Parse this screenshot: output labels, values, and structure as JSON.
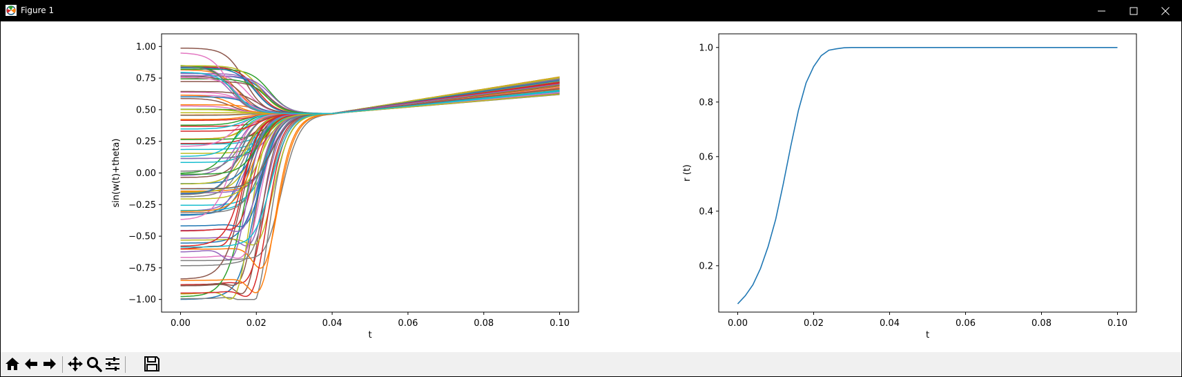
{
  "window": {
    "title": "Figure 1"
  },
  "toolbar": {
    "icons": [
      "home-icon",
      "back-arrow-icon",
      "forward-arrow-icon",
      "pan-icon",
      "zoom-icon",
      "configure-subplots-icon",
      "save-icon"
    ]
  },
  "chart_data": [
    {
      "type": "line",
      "title": "",
      "xlabel": "t",
      "ylabel": "sin(w(t)+theta)",
      "xlim": [
        -0.005,
        0.105
      ],
      "ylim": [
        -1.1,
        1.1
      ],
      "xticks": [
        0.0,
        0.02,
        0.04,
        0.06,
        0.08,
        0.1
      ],
      "xtick_labels": [
        "0.00",
        "0.02",
        "0.04",
        "0.06",
        "0.08",
        "0.10"
      ],
      "yticks": [
        -1.0,
        -0.75,
        -0.5,
        -0.25,
        0.0,
        0.25,
        0.5,
        0.75,
        1.0
      ],
      "ytick_labels": [
        "−1.00",
        "−0.75",
        "−0.50",
        "−0.25",
        "0.00",
        "0.25",
        "0.50",
        "0.75",
        "1.00"
      ],
      "grid": false,
      "legend": "none",
      "note_series": "100 oscillator series; each rises from an initial value at t=0 to sync near 0.47 by t≈0.04 then grows linearly to about 0.62–0.76 at t=0.10",
      "series_summary": {
        "count": 100,
        "t_sync": 0.04,
        "value_at_sync": 0.47,
        "value_at_end_min": 0.62,
        "value_at_end_max": 0.76,
        "initial_values_range": [
          -1.0,
          1.0
        ]
      }
    },
    {
      "type": "line",
      "title": "",
      "xlabel": "t",
      "ylabel": "r (t)",
      "xlim": [
        -0.005,
        0.105
      ],
      "ylim": [
        0.03,
        1.05
      ],
      "xticks": [
        0.0,
        0.02,
        0.04,
        0.06,
        0.08,
        0.1
      ],
      "xtick_labels": [
        "0.00",
        "0.02",
        "0.04",
        "0.06",
        "0.08",
        "0.10"
      ],
      "yticks": [
        0.2,
        0.4,
        0.6,
        0.8,
        1.0
      ],
      "ytick_labels": [
        "0.2",
        "0.4",
        "0.6",
        "0.8",
        "1.0"
      ],
      "grid": false,
      "legend": "none",
      "series": [
        {
          "color": "#1f77b4",
          "x": [
            0.0,
            0.002,
            0.004,
            0.006,
            0.008,
            0.01,
            0.012,
            0.014,
            0.016,
            0.018,
            0.02,
            0.022,
            0.024,
            0.026,
            0.028,
            0.03,
            0.04,
            0.06,
            0.08,
            0.1
          ],
          "y": [
            0.06,
            0.09,
            0.13,
            0.19,
            0.27,
            0.37,
            0.5,
            0.64,
            0.77,
            0.87,
            0.93,
            0.97,
            0.99,
            0.995,
            0.999,
            1.0,
            1.0,
            1.0,
            1.0,
            1.0
          ]
        }
      ]
    }
  ]
}
